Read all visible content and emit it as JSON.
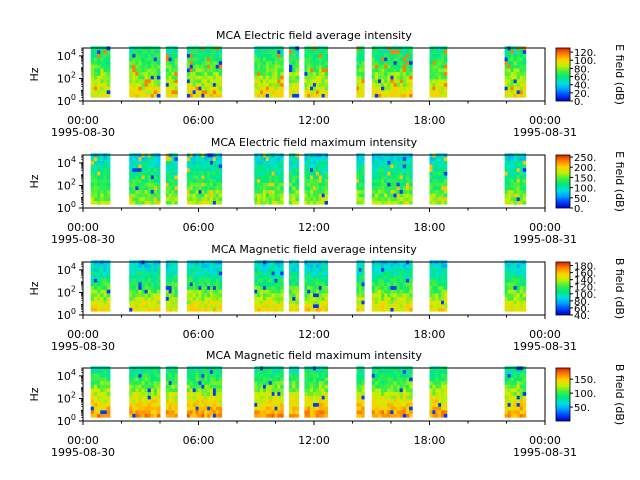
{
  "chart_data": [
    {
      "type": "heatmap",
      "title": "MCA  Electric field average intensity",
      "ylabel": "Hz",
      "yscale": "log",
      "y_ticks": [
        "10",
        "10",
        "10"
      ],
      "y_tick_exps": [
        "0",
        "2",
        "4"
      ],
      "y_tick_values": [
        1,
        100,
        10000
      ],
      "x_tick_labels": [
        "00:00",
        "06:00",
        "12:00",
        "18:00",
        "00:00"
      ],
      "x_date_labels": [
        "1995-08-30",
        "1995-08-31"
      ],
      "xlim": [
        "1995-08-30T00:00",
        "1995-08-31T00:00"
      ],
      "colorbar": {
        "label": "E field (dB)",
        "ticks": [
          "0.",
          "20.",
          "40.",
          "60.",
          "80.",
          "100.",
          "120."
        ],
        "range": [
          0,
          130
        ]
      },
      "data_intervals_hours": [
        [
          0.4,
          1.4
        ],
        [
          2.4,
          4.0
        ],
        [
          4.3,
          4.9
        ],
        [
          5.4,
          7.2
        ],
        [
          8.9,
          10.4
        ],
        [
          10.7,
          11.2
        ],
        [
          11.5,
          12.7
        ],
        [
          14.2,
          14.6
        ],
        [
          15.0,
          17.1
        ],
        [
          18.0,
          18.9
        ],
        [
          21.9,
          23.0
        ]
      ],
      "dominant_level_db": 70
    },
    {
      "type": "heatmap",
      "title": "MCA  Electric field maximum intensity",
      "ylabel": "Hz",
      "yscale": "log",
      "y_ticks": [
        "10",
        "10",
        "10"
      ],
      "y_tick_exps": [
        "0",
        "2",
        "4"
      ],
      "y_tick_values": [
        1,
        100,
        10000
      ],
      "x_tick_labels": [
        "00:00",
        "06:00",
        "12:00",
        "18:00",
        "00:00"
      ],
      "x_date_labels": [
        "1995-08-30",
        "1995-08-31"
      ],
      "xlim": [
        "1995-08-30T00:00",
        "1995-08-31T00:00"
      ],
      "colorbar": {
        "label": "E field (dB)",
        "ticks": [
          "0.",
          "50.",
          "100.",
          "150.",
          "200.",
          "250."
        ],
        "range": [
          0,
          260
        ]
      },
      "data_intervals_hours": [
        [
          0.4,
          1.4
        ],
        [
          2.4,
          4.0
        ],
        [
          4.3,
          4.9
        ],
        [
          5.4,
          7.2
        ],
        [
          8.9,
          10.4
        ],
        [
          10.7,
          11.2
        ],
        [
          11.5,
          12.7
        ],
        [
          14.2,
          14.6
        ],
        [
          15.0,
          17.1
        ],
        [
          18.0,
          18.9
        ],
        [
          21.9,
          23.0
        ]
      ],
      "dominant_level_db": 115
    },
    {
      "type": "heatmap",
      "title": "MCA  Magnetic field average intensity",
      "ylabel": "Hz",
      "yscale": "log",
      "y_ticks": [
        "10",
        "10",
        "10"
      ],
      "y_tick_exps": [
        "0",
        "2",
        "4"
      ],
      "y_tick_values": [
        1,
        100,
        10000
      ],
      "x_tick_labels": [
        "00:00",
        "06:00",
        "12:00",
        "18:00",
        "00:00"
      ],
      "x_date_labels": [
        "1995-08-30",
        "1995-08-31"
      ],
      "xlim": [
        "1995-08-30T00:00",
        "1995-08-31T00:00"
      ],
      "colorbar": {
        "label": "B field (dB)",
        "ticks": [
          "40.",
          "60.",
          "80.",
          "100.",
          "120.",
          "140.",
          "160.",
          "180."
        ],
        "range": [
          40,
          190
        ]
      },
      "data_intervals_hours": [
        [
          0.4,
          1.4
        ],
        [
          2.4,
          4.0
        ],
        [
          4.3,
          4.9
        ],
        [
          5.4,
          7.2
        ],
        [
          8.9,
          10.4
        ],
        [
          10.7,
          11.2
        ],
        [
          11.5,
          12.7
        ],
        [
          14.2,
          14.6
        ],
        [
          15.0,
          17.1
        ],
        [
          18.0,
          18.9
        ],
        [
          21.9,
          23.0
        ]
      ],
      "dominant_level_db": 110
    },
    {
      "type": "heatmap",
      "title": "MCA  Magnetic field maximum intensity",
      "ylabel": "Hz",
      "yscale": "log",
      "y_ticks": [
        "10",
        "10",
        "10"
      ],
      "y_tick_exps": [
        "0",
        "2",
        "4"
      ],
      "y_tick_values": [
        1,
        100,
        10000
      ],
      "x_tick_labels": [
        "00:00",
        "06:00",
        "12:00",
        "18:00",
        "00:00"
      ],
      "x_date_labels": [
        "1995-08-30",
        "1995-08-31"
      ],
      "xlim": [
        "1995-08-30T00:00",
        "1995-08-31T00:00"
      ],
      "colorbar": {
        "label": "B field (dB)",
        "ticks": [
          "50.",
          "100.",
          "150."
        ],
        "range": [
          0,
          190
        ]
      },
      "data_intervals_hours": [
        [
          0.4,
          1.4
        ],
        [
          2.4,
          4.0
        ],
        [
          4.3,
          4.9
        ],
        [
          5.4,
          7.2
        ],
        [
          8.9,
          10.4
        ],
        [
          10.7,
          11.2
        ],
        [
          11.5,
          12.7
        ],
        [
          14.2,
          14.6
        ],
        [
          15.0,
          17.1
        ],
        [
          18.0,
          18.9
        ],
        [
          21.9,
          23.0
        ]
      ],
      "dominant_level_db": 110
    }
  ],
  "colors": {
    "colormap": [
      "#0000c8",
      "#0040ff",
      "#00a0ff",
      "#00e0e0",
      "#00e87a",
      "#40f040",
      "#c8f000",
      "#ffd000",
      "#ff8000",
      "#e02000"
    ]
  }
}
